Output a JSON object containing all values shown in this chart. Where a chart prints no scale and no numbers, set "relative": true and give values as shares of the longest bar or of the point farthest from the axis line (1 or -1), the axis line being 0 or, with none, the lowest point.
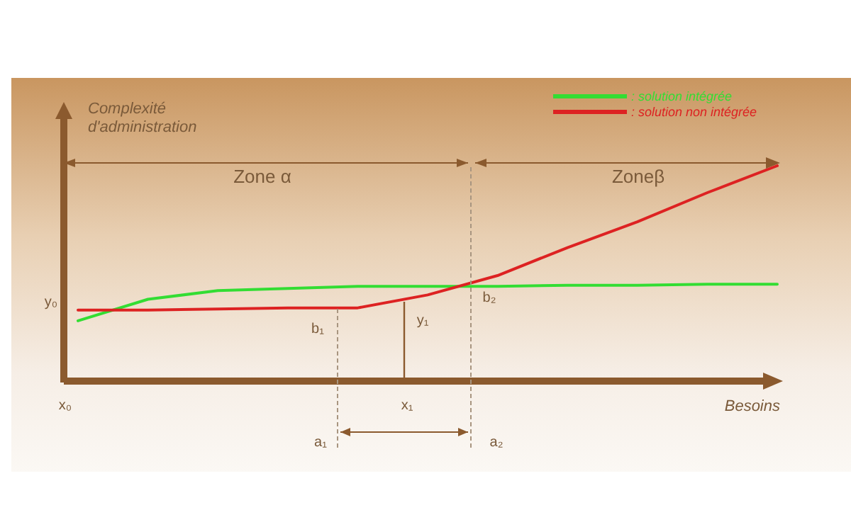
{
  "chart_data": {
    "type": "line",
    "relative": true,
    "xlabel": "Besoins",
    "ylabel": "Complexité d'administration",
    "legend": "top right",
    "marker": "none",
    "line_style": "solid",
    "categories": [
      null,
      null,
      null,
      null,
      null,
      null,
      null,
      null,
      null,
      null,
      null
    ],
    "series": [
      {
        "name": ": solution intégrée",
        "color": "#33dd33",
        "values": [
          0.28,
          0.38,
          0.42,
          0.43,
          0.44,
          0.44,
          0.44,
          0.445,
          0.445,
          0.45,
          0.45
        ]
      },
      {
        "name": ": solution non intégrée",
        "color": "#dd2222",
        "values": [
          0.33,
          0.33,
          0.335,
          0.34,
          0.34,
          0.4,
          0.49,
          0.62,
          0.74,
          0.875,
          1
        ]
      }
    ],
    "annotations": [
      "Zone α",
      "Zoneβ",
      "y₀",
      "b₁",
      "y₁",
      "b₂",
      "x₀",
      "x₁",
      "a₁",
      "a₂"
    ]
  }
}
